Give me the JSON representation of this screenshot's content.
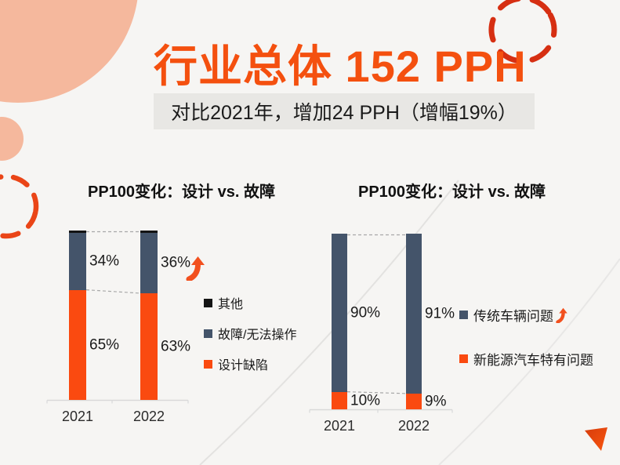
{
  "page": {
    "title": "行业总体 152 PPH",
    "subtitle": "对比2021年，增加24 PPH（增幅19%）"
  },
  "colors": {
    "accent_orange": "#F4500F",
    "bar_orange": "#FA4A10",
    "bar_slate": "#44546A",
    "bar_black": "#141414",
    "subtitle_bg": "#E8E7E4",
    "peach_circle": "#F5B89D",
    "dash_circle_red": "#D62F12",
    "dash_circle_orange": "#EA4517",
    "connector_gray": "#A8A8A8",
    "axis_gray": "#D9D9D9"
  },
  "chart_data": [
    {
      "type": "bar",
      "stacked": true,
      "title": "PP100变化：设计 vs. 故障",
      "categories": [
        "2021",
        "2022"
      ],
      "unit": "percent",
      "ylim": [
        0,
        100
      ],
      "grid": false,
      "series": [
        {
          "name": "设计缺陷",
          "color": "#FA4A10",
          "values": [
            65,
            63
          ],
          "value_labels": [
            "65%",
            "63%"
          ]
        },
        {
          "name": "故障/无法操作",
          "color": "#44546A",
          "values": [
            34,
            36
          ],
          "value_labels": [
            "34%",
            "36%"
          ]
        },
        {
          "name": "其他",
          "color": "#141414",
          "values": [
            1,
            1
          ],
          "value_labels": [
            null,
            null
          ]
        }
      ],
      "legend": [
        {
          "label": "其他",
          "color": "#141414"
        },
        {
          "label": "故障/无法操作",
          "color": "#44546A"
        },
        {
          "label": "设计缺陷",
          "color": "#FA4A10"
        }
      ],
      "trend": {
        "category": "2022",
        "series": "故障/无法操作",
        "direction": "up"
      },
      "legend_position": "right"
    },
    {
      "type": "bar",
      "stacked": true,
      "title": "PP100变化：设计 vs. 故障",
      "categories": [
        "2021",
        "2022"
      ],
      "unit": "percent",
      "ylim": [
        0,
        100
      ],
      "grid": false,
      "series": [
        {
          "name": "新能源汽车特有问题",
          "color": "#FA4A10",
          "values": [
            10,
            9
          ],
          "value_labels": [
            "10%",
            "9%"
          ]
        },
        {
          "name": "传统车辆问题",
          "color": "#44546A",
          "values": [
            90,
            91
          ],
          "value_labels": [
            "90%",
            "91%"
          ]
        }
      ],
      "legend": [
        {
          "label": "传统车辆问题",
          "color": "#44546A",
          "trend": "up"
        },
        {
          "label": "新能源汽车特有问题",
          "color": "#FA4A10"
        }
      ],
      "legend_position": "right"
    }
  ]
}
